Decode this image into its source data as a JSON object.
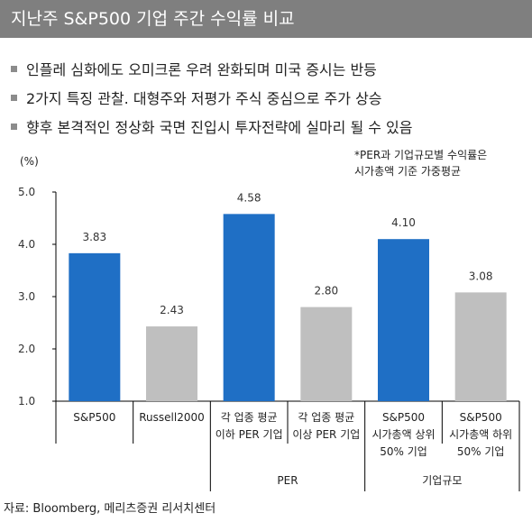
{
  "header": {
    "title": "지난주 S&P500 기업 주간 수익률 비교"
  },
  "bullets": [
    "인플레 심화에도 오미크론 우려 완화되며 미국 증시는 반등",
    "2가지 특징 관찰. 대형주와 저평가 주식 중심으로 주가 상승",
    "향후 본격적인 정상화 국면 진입시 투자전략에 실마리 될 수 있음"
  ],
  "note": {
    "line1": "*PER과 기업규모별 수익률은",
    "line2": "시가총액 기준 가중평균"
  },
  "unit": "(%)",
  "source": "자료: Bloomberg, 메리츠증권 리서치센터",
  "colors": {
    "blue": "#1f6fc5",
    "gray": "#bfbfbf",
    "title_bg": "#7f7f7f"
  },
  "chart_data": {
    "type": "bar",
    "ylim": [
      1.0,
      5.0
    ],
    "yticks": [
      "1.0",
      "2.0",
      "3.0",
      "4.0",
      "5.0"
    ],
    "categories": [
      [
        "S&P500"
      ],
      [
        "Russell2000"
      ],
      [
        "각 업종 평균",
        "이하 PER 기업"
      ],
      [
        "각 업종 평균",
        "이상 PER 기업"
      ],
      [
        "S&P500",
        "시가총액 상위",
        "50% 기업"
      ],
      [
        "S&P500",
        "시가총액 하위",
        "50% 기업"
      ]
    ],
    "values": [
      3.83,
      2.43,
      4.58,
      2.8,
      4.1,
      3.08
    ],
    "value_labels": [
      "3.83",
      "2.43",
      "4.58",
      "2.80",
      "4.10",
      "3.08"
    ],
    "bar_colors": [
      "blue",
      "gray",
      "blue",
      "gray",
      "blue",
      "gray"
    ],
    "groups": [
      {
        "label": "PER",
        "from": 2,
        "to": 3
      },
      {
        "label": "기업규모",
        "from": 4,
        "to": 5
      }
    ]
  }
}
